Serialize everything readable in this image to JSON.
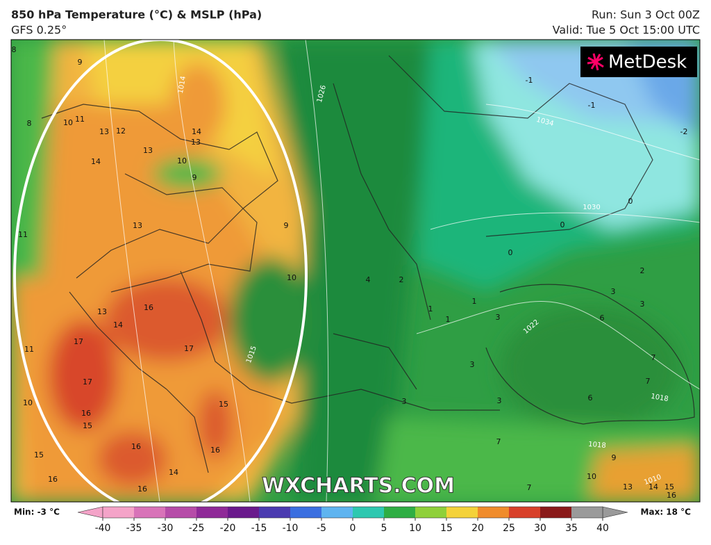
{
  "header": {
    "title": "850 hPa Temperature (°C) & MSLP (hPa)",
    "model": "GFS 0.25°",
    "run": "Run: Sun 3 Oct 00Z",
    "valid": "Valid: Tue 5 Oct 15:00 UTC"
  },
  "logo": "MetDesk",
  "watermark": "WXCHARTS.COM",
  "map": {
    "temperature_labels": [
      "8",
      "9",
      "8",
      "10",
      "11",
      "13",
      "12",
      "14",
      "13",
      "13",
      "14",
      "10",
      "9",
      "13",
      "11",
      "9",
      "10",
      "16",
      "13",
      "14",
      "17",
      "17",
      "17",
      "16",
      "15",
      "15",
      "16",
      "16",
      "14",
      "16",
      "15",
      "16",
      "10",
      "11",
      "-1",
      "-1",
      "-2",
      "0",
      "0",
      "0",
      "2",
      "2",
      "4",
      "1",
      "1",
      "1",
      "3",
      "3",
      "3",
      "3",
      "3",
      "3",
      "6",
      "6",
      "7",
      "7",
      "10",
      "13",
      "14",
      "15",
      "16",
      "9",
      "7",
      "7"
    ],
    "isobar_labels": [
      "1026",
      "1034",
      "1030",
      "1022",
      "1018",
      "1018",
      "1015",
      "1014",
      "1010"
    ]
  },
  "colorbar": {
    "min_label": "Min: -3 °C",
    "max_label": "Max: 18 °C",
    "ticks": [
      -40,
      -35,
      -30,
      -25,
      -20,
      -15,
      -10,
      -5,
      0,
      5,
      10,
      15,
      20,
      25,
      30,
      35,
      40
    ],
    "colors": [
      "#f4a3c8",
      "#d873b8",
      "#b64ca8",
      "#8f2a98",
      "#6a1a8c",
      "#4b3bb0",
      "#3b6fe0",
      "#5fb4f0",
      "#2ec8b0",
      "#2fae44",
      "#8fd03a",
      "#f4d23a",
      "#f08c2c",
      "#d8402a",
      "#8a1a1a",
      "#9a9a9a"
    ]
  }
}
